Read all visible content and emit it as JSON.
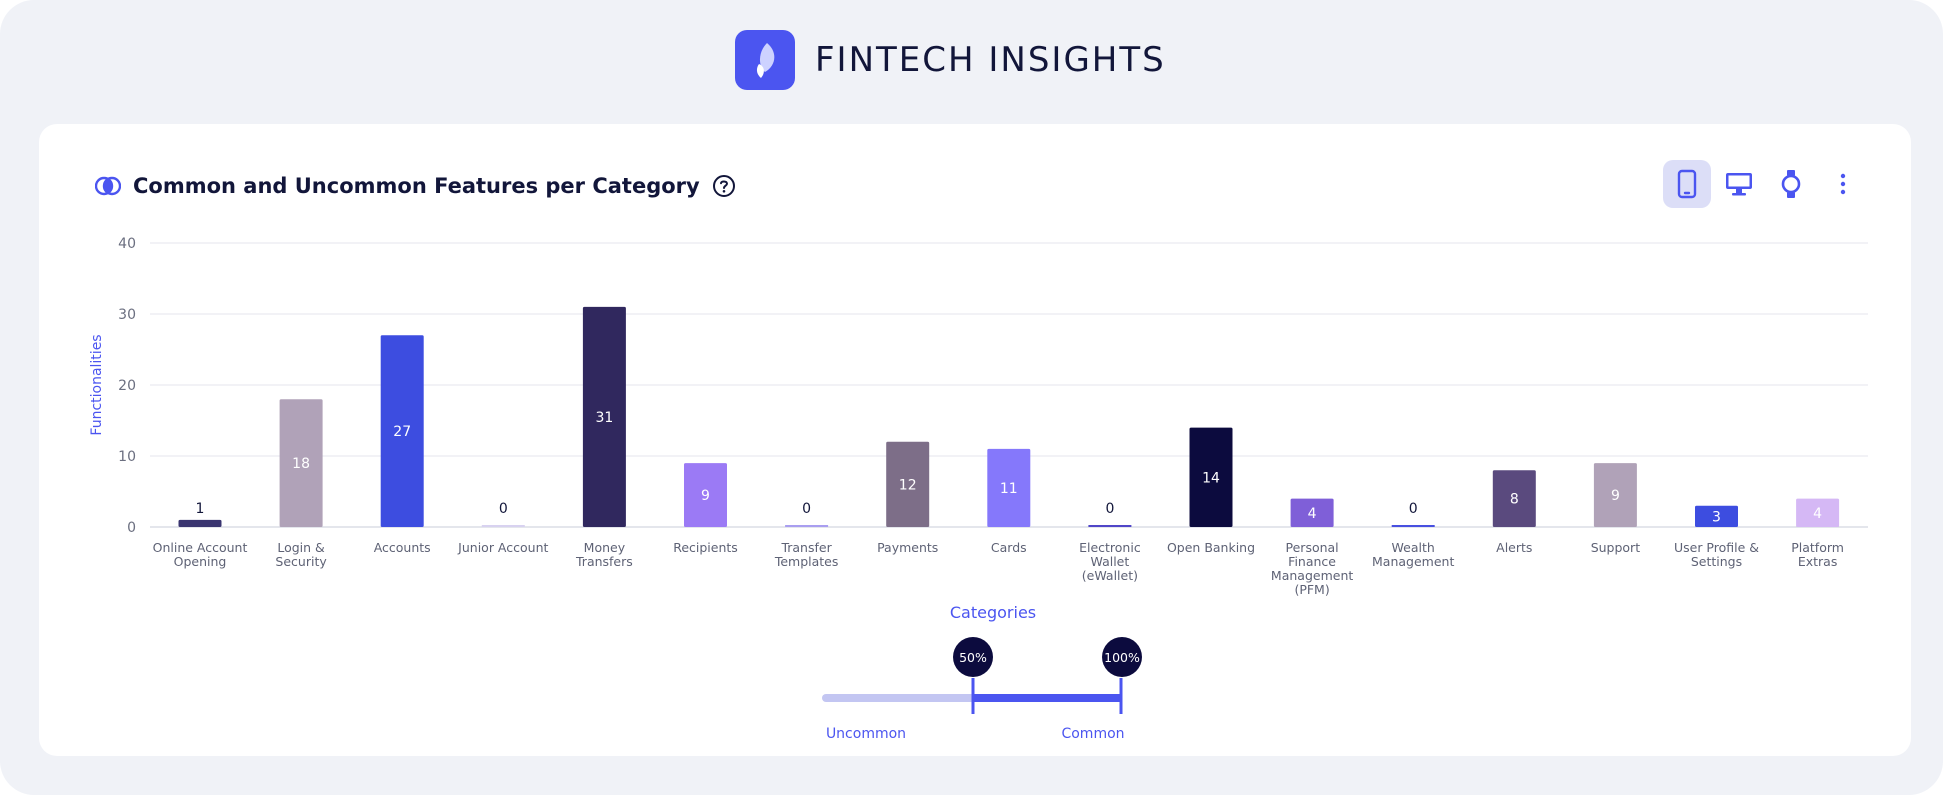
{
  "brand": {
    "name": "FINTECH INSIGHTS"
  },
  "card": {
    "title": "Common and Uncommon Features per Category"
  },
  "toolbar": {
    "buttons": [
      {
        "icon": "smartphone-icon",
        "active": true
      },
      {
        "icon": "desktop-icon",
        "active": false
      },
      {
        "icon": "smartwatch-icon",
        "active": false
      },
      {
        "icon": "more-vertical-icon",
        "active": false
      }
    ]
  },
  "colors": {
    "accent": "#4b55f0",
    "dark": "#12163a",
    "grid": "#e4e6ee"
  },
  "chart_data": {
    "type": "bar",
    "ylabel": "Functionalities",
    "xlabel": "Categories",
    "ylim": [
      0,
      40
    ],
    "yticks": [
      0,
      10,
      20,
      30,
      40
    ],
    "grid": true,
    "categories": [
      [
        "Online Account",
        "Opening"
      ],
      [
        "Login &",
        "Security"
      ],
      [
        "Accounts"
      ],
      [
        "Junior Account"
      ],
      [
        "Money",
        "Transfers"
      ],
      [
        "Recipients"
      ],
      [
        "Transfer",
        "Templates"
      ],
      [
        "Payments"
      ],
      [
        "Cards"
      ],
      [
        "Electronic",
        "Wallet",
        "(eWallet)"
      ],
      [
        "Open Banking"
      ],
      [
        "Personal",
        "Finance",
        "Management",
        "(PFM)"
      ],
      [
        "Wealth",
        "Management"
      ],
      [
        "Alerts"
      ],
      [
        "Support"
      ],
      [
        "User Profile &",
        "Settings"
      ],
      [
        "Platform",
        "Extras"
      ]
    ],
    "values": [
      1,
      18,
      27,
      0,
      31,
      9,
      0,
      12,
      11,
      0,
      14,
      4,
      0,
      8,
      9,
      3,
      4
    ],
    "bar_colors": [
      "#3a3570",
      "#b0a2b8",
      "#3d4de0",
      "#d8d2f0",
      "#30285e",
      "#9b7af5",
      "#a99ef0",
      "#7d6e88",
      "#8578fb",
      "#5046c8",
      "#0c0b3e",
      "#7f5fd8",
      "#4850e0",
      "#5a4a7e",
      "#b0a2b8",
      "#3d4de0",
      "#d5b8f5"
    ],
    "legend": {
      "markers": [
        "50%",
        "100%"
      ],
      "labels": [
        "Uncommon",
        "Common"
      ]
    }
  }
}
